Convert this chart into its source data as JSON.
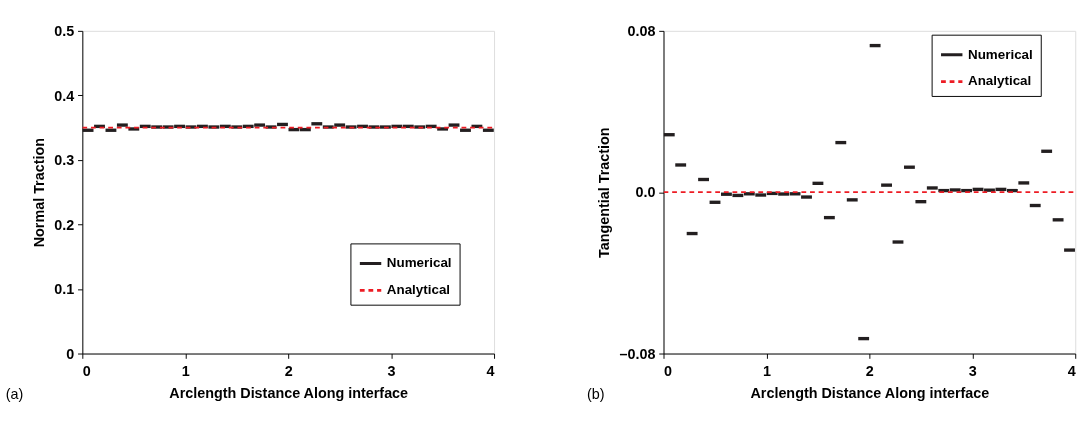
{
  "chart_data": [
    {
      "type": "scatter",
      "xlabel": "Arclength Distance Along interface",
      "ylabel": "Normal Traction",
      "xlim": [
        0,
        4
      ],
      "xticks": [
        0,
        1,
        2,
        3,
        4
      ],
      "ylim": [
        0,
        0.5
      ],
      "yticks": [
        0,
        0.1,
        0.2,
        0.3,
        0.4,
        0.5
      ],
      "legend": "right",
      "grid": false,
      "annotations": [
        "(a)"
      ],
      "series": [
        {
          "name": "Numerical",
          "color": "#231f20",
          "x": [
            0.0556,
            0.1667,
            0.2778,
            0.3889,
            0.5,
            0.6111,
            0.7222,
            0.8333,
            0.9444,
            1.0556,
            1.1667,
            1.2778,
            1.3889,
            1.5,
            1.6111,
            1.7222,
            1.8333,
            1.9444,
            2.0556,
            2.1667,
            2.2778,
            2.3889,
            2.5,
            2.6111,
            2.7222,
            2.8333,
            2.9444,
            3.0556,
            3.1667,
            3.2778,
            3.3889,
            3.5,
            3.6111,
            3.7222,
            3.8333,
            3.9444
          ],
          "values": [
            0.346,
            0.352,
            0.346,
            0.354,
            0.348,
            0.352,
            0.351,
            0.351,
            0.352,
            0.351,
            0.352,
            0.351,
            0.352,
            0.351,
            0.352,
            0.354,
            0.351,
            0.355,
            0.347,
            0.347,
            0.356,
            0.351,
            0.354,
            0.351,
            0.352,
            0.351,
            0.351,
            0.352,
            0.352,
            0.351,
            0.352,
            0.348,
            0.354,
            0.346,
            0.352,
            0.346
          ]
        },
        {
          "name": "Analytical",
          "type": "line",
          "line_style": "dashed",
          "color": "#ed1c24",
          "x": [
            0,
            4
          ],
          "values": [
            0.35,
            0.35
          ]
        }
      ]
    },
    {
      "type": "scatter",
      "xlabel": "Arclength Distance Along interface",
      "ylabel": "Tangential Traction",
      "xlim": [
        0,
        4
      ],
      "xticks": [
        0,
        1,
        2,
        3,
        4
      ],
      "ylim": [
        -0.08,
        0.08
      ],
      "yticks": [
        {
          "value": -0.08,
          "label": "–0.08"
        },
        {
          "value": 0,
          "label": "0.0"
        },
        0.08
      ],
      "legend": "top right",
      "grid": false,
      "annotations": [
        "(b)"
      ],
      "series": [
        {
          "name": "Numerical",
          "color": "#231f20",
          "x": [
            0.0556,
            0.1667,
            0.2778,
            0.3889,
            0.5,
            0.6111,
            0.7222,
            0.8333,
            0.9444,
            1.0556,
            1.1667,
            1.2778,
            1.3889,
            1.5,
            1.6111,
            1.7222,
            1.8333,
            1.9444,
            2.0556,
            2.1667,
            2.2778,
            2.3889,
            2.5,
            2.6111,
            2.7222,
            2.8333,
            2.9444,
            3.0556,
            3.1667,
            3.2778,
            3.3889,
            3.5,
            3.6111,
            3.7222,
            3.8333,
            3.9444
          ],
          "values": [
            0.0285,
            0.0135,
            -0.0205,
            0.0063,
            -0.005,
            -0.001,
            -0.0016,
            -0.0008,
            -0.0014,
            -0.0006,
            -0.0009,
            -0.0008,
            -0.0024,
            0.0044,
            -0.0126,
            0.0246,
            -0.0038,
            -0.0726,
            0.0727,
            0.0035,
            -0.0247,
            0.0124,
            -0.0047,
            0.0021,
            0.0008,
            0.0011,
            0.0008,
            0.0014,
            0.001,
            0.0014,
            0.0008,
            0.0046,
            -0.0066,
            0.0203,
            -0.0137,
            -0.0287
          ]
        },
        {
          "name": "Analytical",
          "type": "line",
          "line_style": "dashed",
          "color": "#ed1c24",
          "x": [
            0,
            4
          ],
          "values": [
            0,
            0
          ]
        }
      ]
    }
  ]
}
